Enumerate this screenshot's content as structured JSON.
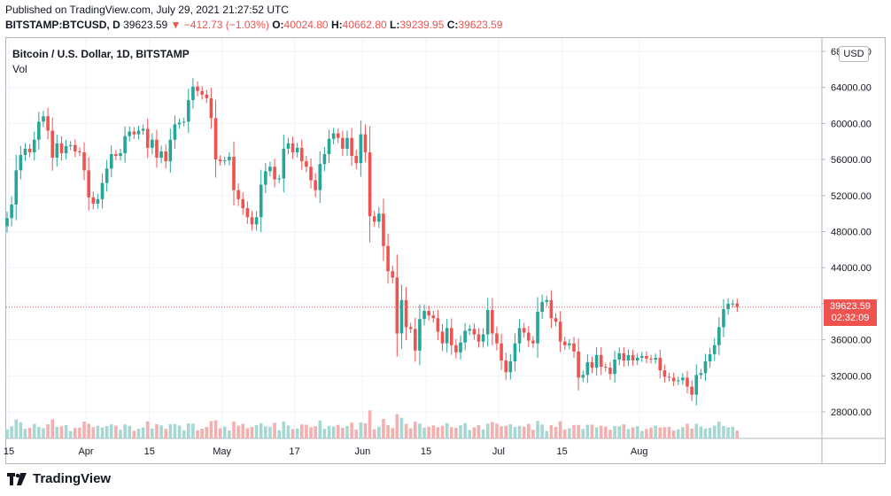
{
  "header": {
    "published": "Published on TradingView.com, July 29, 2021 21:27:52 UTC",
    "symbol": "BITSTAMP:BTCUSD, D",
    "last": "39623.59",
    "change_arrow": "▼",
    "change": "−412.73 (−1.03%)",
    "o_label": "O:",
    "o_value": "40024.80",
    "h_label": "H:",
    "h_value": "40662.80",
    "l_label": "L:",
    "l_value": "39239.95",
    "c_label": "C:",
    "c_value": "39623.59"
  },
  "legend": {
    "title": "Bitcoin / U.S. Dollar, 1D, BITSTAMP",
    "vol": "Vol"
  },
  "currency_button": "USD",
  "last_price": {
    "price": "39623.59",
    "countdown": "02:32:09"
  },
  "footer": {
    "brand": "TradingView",
    "logo_icon": "tradingview-logo-icon"
  },
  "colors": {
    "up": "#26a69a",
    "down": "#ef5350",
    "vol_up": "#a6d8d3",
    "vol_down": "#f3b0ae",
    "grid": "#f0f3fa"
  },
  "chart_data": {
    "type": "candlestick",
    "title": "Bitcoin / U.S. Dollar, 1D, BITSTAMP",
    "ylim": [
      24000,
      68000
    ],
    "y_ticks": [
      "68000.00",
      "64000.00",
      "60000.00",
      "56000.00",
      "52000.00",
      "48000.00",
      "44000.00",
      "40000.00",
      "36000.00",
      "32000.00",
      "28000.00"
    ],
    "y_tick_values": [
      68000,
      64000,
      60000,
      56000,
      52000,
      48000,
      44000,
      40000,
      36000,
      32000,
      28000
    ],
    "x_ticks": [
      {
        "label": "15",
        "day": 0
      },
      {
        "label": "Apr",
        "day": 17
      },
      {
        "label": "15",
        "day": 31
      },
      {
        "label": "May",
        "day": 47
      },
      {
        "label": "17",
        "day": 63
      },
      {
        "label": "Jun",
        "day": 78
      },
      {
        "label": "15",
        "day": 92
      },
      {
        "label": "Jul",
        "day": 108
      },
      {
        "label": "15",
        "day": 122
      },
      {
        "label": "Aug",
        "day": 139
      }
    ],
    "first_day": "Mar 15, 2021",
    "closes": [
      49500,
      51000,
      54800,
      56500,
      57200,
      56800,
      58200,
      60200,
      60800,
      59200,
      56200,
      57800,
      56700,
      57500,
      57600,
      56900,
      56800,
      54800,
      51800,
      51100,
      51600,
      53400,
      55000,
      56600,
      56400,
      56700,
      58600,
      59100,
      58800,
      59200,
      59400,
      57300,
      58200,
      56200,
      56900,
      55800,
      58200,
      59900,
      60100,
      60200,
      62600,
      64100,
      63600,
      63200,
      62800,
      60600,
      56000,
      55800,
      55900,
      56300,
      52600,
      51600,
      50600,
      49600,
      48800,
      49600,
      53200,
      54700,
      55200,
      53800,
      53900,
      57200,
      57800,
      56800,
      57300,
      55800,
      55200,
      53700,
      52600,
      55500,
      56600,
      58300,
      58900,
      58400,
      57200,
      58400,
      56400,
      55600,
      58800,
      56800,
      49700,
      49100,
      50000,
      46400,
      43600,
      42900,
      36700,
      40400,
      37400,
      37200,
      34800,
      38300,
      39200,
      38700,
      38400,
      36900,
      35600,
      37300,
      35400,
      34600,
      35700,
      37000,
      37200,
      36600,
      35800,
      36600,
      39300,
      36700,
      35600,
      33700,
      32400,
      33600,
      35600,
      37300,
      36800,
      35900,
      35600,
      39100,
      40200,
      40400,
      38400,
      38000,
      35800,
      35400,
      35600,
      34700,
      31800,
      32100,
      33500,
      32900,
      34300,
      33000,
      32900,
      32200,
      33800,
      34500,
      33700,
      34300,
      33700,
      34000,
      34200,
      33900,
      33800,
      34000,
      32600,
      31900,
      31800,
      31400,
      31500,
      31800,
      30800,
      29900,
      32100,
      32300,
      33600,
      34400,
      35400,
      37400,
      39400,
      40000,
      40024,
      39623
    ],
    "volume_note": "Volume bars shown relative (no axis values printed)"
  }
}
